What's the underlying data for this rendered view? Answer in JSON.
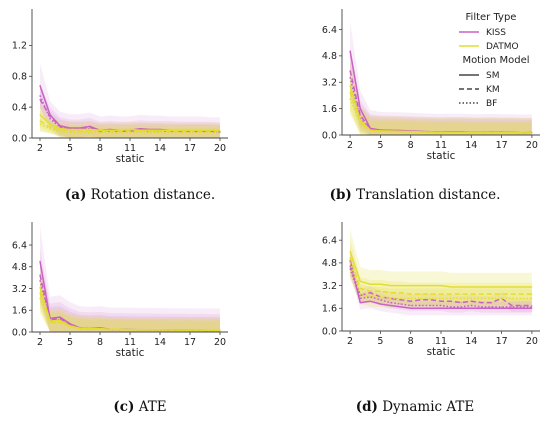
{
  "colors": {
    "kiss": "#c962c4",
    "datmo": "#e2dd34",
    "axis": "#444444"
  },
  "legend": {
    "filter_title": "Filter Type",
    "filters": [
      {
        "label": "KISS",
        "color": "#c962c4"
      },
      {
        "label": "DATMO",
        "color": "#e2dd34"
      }
    ],
    "motion_title": "Motion Model",
    "motions": [
      {
        "label": "SM",
        "dash": "solid"
      },
      {
        "label": "KM",
        "dash": "dashed"
      },
      {
        "label": "BF",
        "dash": "dotted"
      }
    ]
  },
  "chart_data": [
    {
      "type": "line",
      "caption_tag": "(a)",
      "caption_text": " Rotation distance.",
      "xlabel": "static",
      "xticks": [
        2,
        5,
        8,
        11,
        14,
        17,
        20
      ],
      "yticks": [
        0.0,
        0.4,
        0.8,
        1.2
      ],
      "ytick_labels": [
        "0.0",
        "0.4",
        "0.8",
        "1.2"
      ],
      "xlim": [
        1.2,
        20.8
      ],
      "ylim": [
        0,
        1.62
      ],
      "x": [
        2,
        3,
        4,
        5,
        6,
        7,
        8,
        9,
        10,
        11,
        12,
        13,
        14,
        15,
        16,
        17,
        18,
        19,
        20
      ],
      "series": [
        {
          "filter": "KISS",
          "model": "SM",
          "values": [
            0.68,
            0.3,
            0.16,
            0.13,
            0.13,
            0.15,
            0.1,
            0.11,
            0.1,
            0.1,
            0.12,
            0.11,
            0.11,
            0.1,
            0.1,
            0.1,
            0.1,
            0.09,
            0.09
          ],
          "band": 0.18
        },
        {
          "filter": "KISS",
          "model": "KM",
          "values": [
            0.5,
            0.28,
            0.15,
            0.12,
            0.12,
            0.14,
            0.09,
            0.1,
            0.09,
            0.09,
            0.11,
            0.1,
            0.1,
            0.1,
            0.09,
            0.09,
            0.09,
            0.09,
            0.08
          ],
          "band": 0.12
        },
        {
          "filter": "KISS",
          "model": "BF",
          "values": [
            0.55,
            0.25,
            0.14,
            0.11,
            0.11,
            0.12,
            0.08,
            0.09,
            0.08,
            0.08,
            0.1,
            0.09,
            0.09,
            0.08,
            0.08,
            0.08,
            0.08,
            0.08,
            0.07
          ],
          "band": 0.1
        },
        {
          "filter": "DATMO",
          "model": "SM",
          "values": [
            0.3,
            0.18,
            0.12,
            0.11,
            0.11,
            0.11,
            0.1,
            0.1,
            0.1,
            0.11,
            0.1,
            0.1,
            0.1,
            0.1,
            0.1,
            0.1,
            0.1,
            0.1,
            0.1
          ],
          "band": 0.1
        },
        {
          "filter": "DATMO",
          "model": "KM",
          "values": [
            0.22,
            0.14,
            0.1,
            0.09,
            0.09,
            0.09,
            0.09,
            0.09,
            0.09,
            0.09,
            0.09,
            0.09,
            0.09,
            0.09,
            0.09,
            0.09,
            0.09,
            0.09,
            0.09
          ],
          "band": 0.08
        },
        {
          "filter": "DATMO",
          "model": "BF",
          "values": [
            0.18,
            0.12,
            0.08,
            0.07,
            0.07,
            0.07,
            0.07,
            0.07,
            0.07,
            0.07,
            0.07,
            0.07,
            0.07,
            0.07,
            0.07,
            0.07,
            0.07,
            0.07,
            0.07
          ],
          "band": 0.06
        }
      ]
    },
    {
      "type": "line",
      "caption_tag": "(b)",
      "caption_text": " Translation distance.",
      "xlabel": "static",
      "xticks": [
        2,
        5,
        8,
        11,
        14,
        17,
        20
      ],
      "yticks": [
        0.0,
        1.6,
        3.2,
        4.8,
        6.4
      ],
      "ytick_labels": [
        "0.0",
        "1.6",
        "3.2",
        "4.8",
        "6.4"
      ],
      "xlim": [
        1.2,
        20.8
      ],
      "ylim": [
        0,
        7.4
      ],
      "x": [
        2,
        3,
        4,
        5,
        6,
        7,
        8,
        9,
        10,
        11,
        12,
        13,
        14,
        15,
        16,
        17,
        18,
        19,
        20
      ],
      "series": [
        {
          "filter": "KISS",
          "model": "SM",
          "values": [
            5.1,
            1.6,
            0.4,
            0.3,
            0.28,
            0.27,
            0.25,
            0.22,
            0.2,
            0.18,
            0.2,
            0.2,
            0.17,
            0.17,
            0.18,
            0.16,
            0.17,
            0.14,
            0.15
          ],
          "band": 1.1
        },
        {
          "filter": "KISS",
          "model": "KM",
          "values": [
            3.9,
            1.2,
            0.35,
            0.28,
            0.27,
            0.25,
            0.23,
            0.2,
            0.19,
            0.17,
            0.19,
            0.19,
            0.16,
            0.16,
            0.17,
            0.15,
            0.16,
            0.13,
            0.14
          ],
          "band": 0.9
        },
        {
          "filter": "KISS",
          "model": "BF",
          "values": [
            3.5,
            1.0,
            0.32,
            0.26,
            0.25,
            0.24,
            0.22,
            0.19,
            0.18,
            0.16,
            0.18,
            0.18,
            0.15,
            0.15,
            0.16,
            0.14,
            0.15,
            0.12,
            0.13
          ],
          "band": 0.8
        },
        {
          "filter": "DATMO",
          "model": "SM",
          "values": [
            3.0,
            0.9,
            0.3,
            0.25,
            0.24,
            0.23,
            0.21,
            0.19,
            0.18,
            0.16,
            0.17,
            0.17,
            0.15,
            0.15,
            0.16,
            0.14,
            0.15,
            0.13,
            0.13
          ],
          "band": 0.9
        },
        {
          "filter": "DATMO",
          "model": "KM",
          "values": [
            2.6,
            0.8,
            0.28,
            0.23,
            0.22,
            0.21,
            0.2,
            0.18,
            0.17,
            0.15,
            0.16,
            0.16,
            0.14,
            0.14,
            0.15,
            0.13,
            0.14,
            0.12,
            0.12
          ],
          "band": 0.7
        },
        {
          "filter": "DATMO",
          "model": "BF",
          "values": [
            2.2,
            0.7,
            0.25,
            0.21,
            0.2,
            0.19,
            0.18,
            0.16,
            0.15,
            0.14,
            0.15,
            0.15,
            0.13,
            0.13,
            0.14,
            0.12,
            0.13,
            0.11,
            0.11
          ],
          "band": 0.6
        }
      ]
    },
    {
      "type": "line",
      "caption_tag": "(c)",
      "caption_text": " ATE",
      "xlabel": "static",
      "xticks": [
        2,
        5,
        8,
        11,
        14,
        17,
        20
      ],
      "yticks": [
        0.0,
        1.6,
        3.2,
        4.8,
        6.4
      ],
      "ytick_labels": [
        "0.0",
        "1.6",
        "3.2",
        "4.8",
        "6.4"
      ],
      "xlim": [
        1.2,
        20.8
      ],
      "ylim": [
        0,
        7.8
      ],
      "x": [
        2,
        3,
        4,
        5,
        6,
        7,
        8,
        9,
        10,
        11,
        12,
        13,
        14,
        15,
        16,
        17,
        18,
        19,
        20
      ],
      "series": [
        {
          "filter": "KISS",
          "model": "SM",
          "values": [
            5.2,
            1.0,
            1.1,
            0.6,
            0.3,
            0.25,
            0.3,
            0.2,
            0.2,
            0.18,
            0.17,
            0.17,
            0.16,
            0.15,
            0.15,
            0.14,
            0.14,
            0.13,
            0.13
          ],
          "band": 1.6
        },
        {
          "filter": "KISS",
          "model": "KM",
          "values": [
            4.2,
            0.9,
            1.0,
            0.55,
            0.28,
            0.24,
            0.28,
            0.19,
            0.19,
            0.17,
            0.16,
            0.16,
            0.15,
            0.14,
            0.14,
            0.13,
            0.13,
            0.12,
            0.12
          ],
          "band": 1.2
        },
        {
          "filter": "KISS",
          "model": "BF",
          "values": [
            3.8,
            0.85,
            0.9,
            0.5,
            0.26,
            0.22,
            0.26,
            0.18,
            0.18,
            0.16,
            0.15,
            0.15,
            0.14,
            0.13,
            0.13,
            0.12,
            0.12,
            0.11,
            0.11
          ],
          "band": 1.0
        },
        {
          "filter": "DATMO",
          "model": "SM",
          "values": [
            3.3,
            0.8,
            0.85,
            0.45,
            0.28,
            0.24,
            0.25,
            0.2,
            0.2,
            0.17,
            0.17,
            0.17,
            0.16,
            0.15,
            0.15,
            0.14,
            0.14,
            0.13,
            0.13
          ],
          "band": 0.9
        },
        {
          "filter": "DATMO",
          "model": "KM",
          "values": [
            2.9,
            0.7,
            0.75,
            0.4,
            0.26,
            0.22,
            0.23,
            0.19,
            0.18,
            0.16,
            0.16,
            0.16,
            0.15,
            0.14,
            0.14,
            0.13,
            0.13,
            0.12,
            0.12
          ],
          "band": 0.8
        },
        {
          "filter": "DATMO",
          "model": "BF",
          "values": [
            2.5,
            0.65,
            0.7,
            0.38,
            0.24,
            0.2,
            0.21,
            0.17,
            0.17,
            0.15,
            0.15,
            0.15,
            0.14,
            0.13,
            0.13,
            0.12,
            0.12,
            0.11,
            0.11
          ],
          "band": 0.7
        }
      ]
    },
    {
      "type": "line",
      "caption_tag": "(d)",
      "caption_text": " Dynamic ATE",
      "xlabel": "static",
      "xticks": [
        2,
        5,
        8,
        11,
        14,
        17,
        20
      ],
      "yticks": [
        0.0,
        1.6,
        3.2,
        4.8,
        6.4
      ],
      "ytick_labels": [
        "0.0",
        "1.6",
        "3.2",
        "4.8",
        "6.4"
      ],
      "xlim": [
        1.2,
        20.8
      ],
      "ylim": [
        0,
        7.4
      ],
      "x": [
        2,
        3,
        4,
        5,
        6,
        7,
        8,
        9,
        10,
        11,
        12,
        13,
        14,
        15,
        16,
        17,
        18,
        19,
        20
      ],
      "series": [
        {
          "filter": "KISS",
          "model": "SM",
          "values": [
            5.0,
            2.0,
            2.1,
            1.9,
            1.8,
            1.7,
            1.6,
            1.6,
            1.6,
            1.6,
            1.6,
            1.6,
            1.6,
            1.6,
            1.6,
            1.6,
            1.6,
            1.6,
            1.6
          ],
          "band": 0.5
        },
        {
          "filter": "KISS",
          "model": "KM",
          "values": [
            4.6,
            2.5,
            2.7,
            2.4,
            2.3,
            2.2,
            2.1,
            2.2,
            2.2,
            2.1,
            2.1,
            2.0,
            2.1,
            2.0,
            2.0,
            2.3,
            1.8,
            1.8,
            1.8
          ],
          "band": 0.45
        },
        {
          "filter": "KISS",
          "model": "BF",
          "values": [
            4.4,
            2.3,
            2.4,
            2.2,
            2.0,
            1.9,
            1.8,
            1.8,
            1.8,
            1.8,
            1.7,
            1.7,
            1.8,
            1.7,
            1.7,
            1.7,
            1.7,
            1.7,
            1.7
          ],
          "band": 0.4
        },
        {
          "filter": "DATMO",
          "model": "SM",
          "values": [
            5.6,
            3.5,
            3.3,
            3.3,
            3.2,
            3.2,
            3.2,
            3.2,
            3.2,
            3.2,
            3.1,
            3.1,
            3.1,
            3.1,
            3.1,
            3.1,
            3.1,
            3.1,
            3.1
          ],
          "band": 1.0
        },
        {
          "filter": "DATMO",
          "model": "KM",
          "values": [
            5.2,
            3.0,
            2.8,
            2.8,
            2.7,
            2.7,
            2.6,
            2.6,
            2.6,
            2.6,
            2.6,
            2.6,
            2.6,
            2.6,
            2.6,
            2.6,
            2.6,
            2.6,
            2.6
          ],
          "band": 0.8
        },
        {
          "filter": "DATMO",
          "model": "BF",
          "values": [
            4.8,
            2.6,
            2.4,
            2.4,
            2.3,
            2.3,
            2.3,
            2.3,
            2.3,
            2.3,
            2.3,
            2.3,
            2.3,
            2.3,
            2.3,
            2.3,
            2.3,
            2.3,
            2.3
          ],
          "band": 0.7
        }
      ]
    }
  ]
}
